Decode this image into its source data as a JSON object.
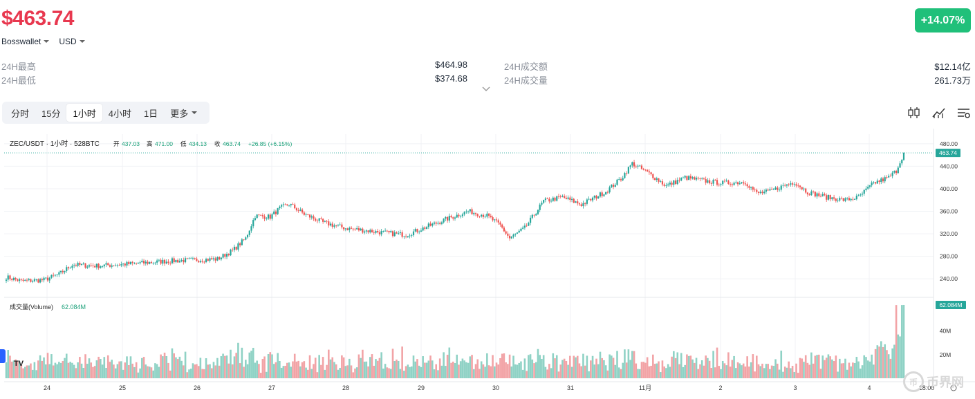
{
  "ticker": {
    "price": "$463.74",
    "change": "+14.07%",
    "source": "Bosswallet",
    "currency": "USD"
  },
  "stats": {
    "high_label": "24H最高",
    "high_value": "$464.98",
    "low_label": "24H最低",
    "low_value": "$374.68",
    "amount_label": "24H成交额",
    "amount_value": "$12.14亿",
    "volume_label": "24H成交量",
    "volume_value": "261.73万"
  },
  "tabs": [
    "分时",
    "15分",
    "1小时",
    "4小时",
    "1日",
    "更多"
  ],
  "active_tab": "1小时",
  "icons": [
    "candlestick-icon",
    "indicator-icon",
    "settings-icon"
  ],
  "chart_data": {
    "type": "candlestick",
    "pair_title": "ZEC/USDT · 1小时 · 528BTC",
    "ohlc_label": {
      "open_label": "开",
      "open": "437.03",
      "high_label": "高",
      "high": "471.00",
      "low_label": "低",
      "low": "434.13",
      "close_label": "收",
      "close": "463.74",
      "change": "+26.85 (+6.15%)"
    },
    "last_price_tag": "463.74",
    "y_ticks": [
      480,
      440,
      400,
      360,
      320,
      280,
      240
    ],
    "y_tick_labels": [
      "480.00",
      "440.00",
      "400.00",
      "360.00",
      "320.00",
      "280.00",
      "240.00"
    ],
    "ylim": [
      212,
      497
    ],
    "x_labels": [
      "24",
      "25",
      "26",
      "27",
      "28",
      "29",
      "30",
      "31",
      "11月",
      "2",
      "3",
      "4",
      "18:00"
    ],
    "close_path": [
      {
        "t": 0,
        "p": 243
      },
      {
        "t": 8,
        "p": 236
      },
      {
        "t": 20,
        "p": 238
      },
      {
        "t": 28,
        "p": 248
      },
      {
        "t": 35,
        "p": 265
      },
      {
        "t": 48,
        "p": 263
      },
      {
        "t": 58,
        "p": 265
      },
      {
        "t": 72,
        "p": 268
      },
      {
        "t": 88,
        "p": 272
      },
      {
        "t": 112,
        "p": 275
      },
      {
        "t": 120,
        "p": 290
      },
      {
        "t": 127,
        "p": 312
      },
      {
        "t": 132,
        "p": 352
      },
      {
        "t": 140,
        "p": 350
      },
      {
        "t": 145,
        "p": 365
      },
      {
        "t": 150,
        "p": 373
      },
      {
        "t": 158,
        "p": 355
      },
      {
        "t": 168,
        "p": 340
      },
      {
        "t": 180,
        "p": 330
      },
      {
        "t": 190,
        "p": 326
      },
      {
        "t": 200,
        "p": 322
      },
      {
        "t": 212,
        "p": 318
      },
      {
        "t": 225,
        "p": 335
      },
      {
        "t": 235,
        "p": 348
      },
      {
        "t": 245,
        "p": 360
      },
      {
        "t": 255,
        "p": 352
      },
      {
        "t": 262,
        "p": 335
      },
      {
        "t": 267,
        "p": 312
      },
      {
        "t": 275,
        "p": 330
      },
      {
        "t": 285,
        "p": 378
      },
      {
        "t": 295,
        "p": 385
      },
      {
        "t": 305,
        "p": 372
      },
      {
        "t": 318,
        "p": 395
      },
      {
        "t": 326,
        "p": 418
      },
      {
        "t": 332,
        "p": 445
      },
      {
        "t": 342,
        "p": 425
      },
      {
        "t": 350,
        "p": 405
      },
      {
        "t": 360,
        "p": 420
      },
      {
        "t": 370,
        "p": 414
      },
      {
        "t": 380,
        "p": 410
      },
      {
        "t": 392,
        "p": 412
      },
      {
        "t": 398,
        "p": 392
      },
      {
        "t": 405,
        "p": 395
      },
      {
        "t": 412,
        "p": 405
      },
      {
        "t": 418,
        "p": 412
      },
      {
        "t": 425,
        "p": 394
      },
      {
        "t": 435,
        "p": 385
      },
      {
        "t": 445,
        "p": 380
      },
      {
        "t": 452,
        "p": 385
      },
      {
        "t": 460,
        "p": 410
      },
      {
        "t": 468,
        "p": 420
      },
      {
        "t": 472,
        "p": 432
      },
      {
        "t": 476,
        "p": 463.74
      }
    ],
    "volume_label": "成交量(Volume)",
    "volume_value": "62.084M",
    "volume_tag": "62.084M",
    "volume_ticks": [
      40,
      20
    ],
    "volume_tick_labels": [
      "40M",
      "20M"
    ],
    "volume_max": 65
  },
  "watermark": {
    "symbol": "币",
    "text": "币界网"
  },
  "tv_logo": "TV"
}
